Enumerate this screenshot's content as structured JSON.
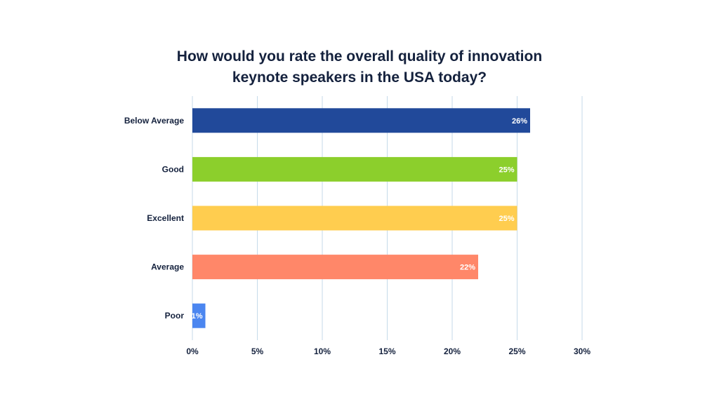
{
  "chart_data": {
    "type": "bar",
    "orientation": "horizontal",
    "title_lines": [
      "How would you rate the overall quality of innovation",
      "keynote speakers in the USA today?"
    ],
    "categories": [
      "Below Average",
      "Good",
      "Excellent",
      "Average",
      "Poor"
    ],
    "values": [
      26,
      25,
      25,
      22,
      1
    ],
    "value_labels": [
      "26%",
      "25%",
      "25%",
      "22%",
      "1%"
    ],
    "colors": [
      "#21499a",
      "#8ccf2c",
      "#ffcd4f",
      "#ff8769",
      "#4b86f0"
    ],
    "xlim": [
      0,
      30
    ],
    "xticks": [
      0,
      5,
      10,
      15,
      20,
      25,
      30
    ],
    "xtick_labels": [
      "0%",
      "5%",
      "10%",
      "15%",
      "20%",
      "25%",
      "30%"
    ],
    "grid": "vertical",
    "legend": "none",
    "xlabel": "",
    "ylabel": ""
  }
}
